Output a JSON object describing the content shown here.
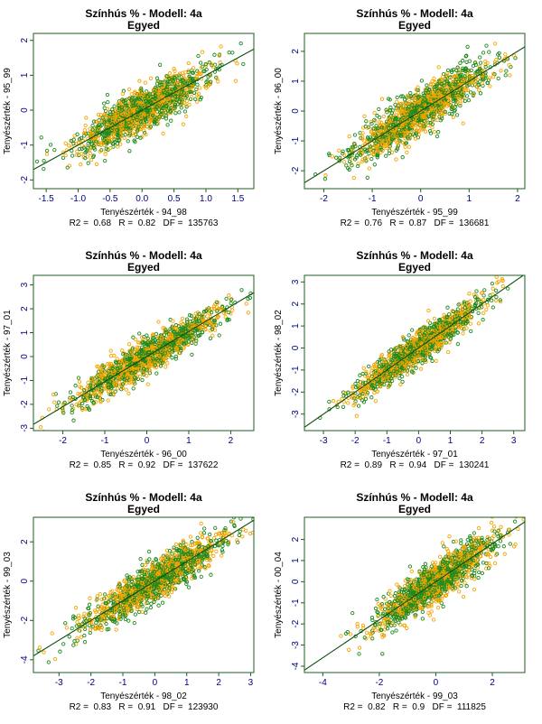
{
  "colors": {
    "primary_points": "#1f8a1f",
    "secondary_points": "#f5a500",
    "fit_line": "#0d4d0d",
    "frame": "#1f5e1f",
    "tick_labels": "#00007f"
  },
  "chart_data": [
    {
      "type": "scatter",
      "title": "Színhús % - Modell: 4a",
      "subtitle": "Egyed",
      "xlabel": "Tenyészérték - 94_98",
      "ylabel": "Tenyészérték - 95_99",
      "xlim": [
        -1.7,
        1.75
      ],
      "ylim": [
        -2.25,
        2.2
      ],
      "xticks": [
        -1.5,
        -1.0,
        -0.5,
        0.0,
        0.5,
        1.0,
        1.5
      ],
      "xtick_labels": [
        "-1.5",
        "-1.0",
        "-0.5",
        "0.0",
        "0.5",
        "1.0",
        "1.5"
      ],
      "yticks": [
        -2,
        -1,
        0,
        1,
        2
      ],
      "ytick_labels": [
        "-2",
        "-1",
        "0",
        "1",
        "2"
      ],
      "cloud": {
        "x_center": 0.0,
        "x_sd": 0.5,
        "r": 0.82
      },
      "fit_line": {
        "slope": 1.0,
        "intercept": 0.0
      },
      "stats": {
        "R2": "0.68",
        "R": "0.82",
        "DF": "135763"
      },
      "stats_text": "R2 =  0.68   R =  0.82   DF =  135763"
    },
    {
      "type": "scatter",
      "title": "Színhús % - Modell: 4a",
      "subtitle": "Egyed",
      "xlabel": "Tenyészérték - 95_99",
      "ylabel": "Tenyészérték - 96_00",
      "xlim": [
        -2.4,
        2.15
      ],
      "ylim": [
        -2.6,
        2.6
      ],
      "xticks": [
        -2,
        -1,
        0,
        1,
        2
      ],
      "xtick_labels": [
        "-2",
        "-1",
        "0",
        "1",
        "2"
      ],
      "yticks": [
        -2,
        -1,
        0,
        1,
        2
      ],
      "ytick_labels": [
        "-2",
        "-1",
        "0",
        "1",
        "2"
      ],
      "cloud": {
        "x_center": 0.0,
        "x_sd": 0.7,
        "r": 0.87
      },
      "fit_line": {
        "slope": 1.0,
        "intercept": 0.0
      },
      "stats": {
        "R2": "0.76",
        "R": "0.87",
        "DF": "136681"
      },
      "stats_text": "R2 =  0.76   R =  0.87   DF =  136681"
    },
    {
      "type": "scatter",
      "title": "Színhús % - Modell: 4a",
      "subtitle": "Egyed",
      "xlabel": "Tenyészérték - 96_00",
      "ylabel": "Tenyészérték - 97_01",
      "xlim": [
        -2.7,
        2.55
      ],
      "ylim": [
        -3.1,
        3.4
      ],
      "xticks": [
        -2,
        -1,
        0,
        1,
        2
      ],
      "xtick_labels": [
        "-2",
        "-1",
        "0",
        "1",
        "2"
      ],
      "yticks": [
        -3,
        -2,
        -1,
        0,
        1,
        2,
        3
      ],
      "ytick_labels": [
        "-3",
        "-2",
        "-1",
        "0",
        "1",
        "2",
        "3"
      ],
      "cloud": {
        "x_center": 0.0,
        "x_sd": 0.85,
        "r": 0.92
      },
      "fit_line": {
        "slope": 1.05,
        "intercept": 0.0
      },
      "stats": {
        "R2": "0.85",
        "R": "0.92",
        "DF": "137622"
      },
      "stats_text": "R2 =  0.85   R =  0.92   DF =  137622"
    },
    {
      "type": "scatter",
      "title": "Színhús % - Modell: 4a",
      "subtitle": "Egyed",
      "xlabel": "Tenyészérték - 97_01",
      "ylabel": "Tenyészérték - 98_02",
      "xlim": [
        -3.6,
        3.35
      ],
      "ylim": [
        -3.75,
        3.3
      ],
      "xticks": [
        -3,
        -2,
        -1,
        0,
        1,
        2,
        3
      ],
      "xtick_labels": [
        "-3",
        "-2",
        "-1",
        "0",
        "1",
        "2",
        "3"
      ],
      "yticks": [
        -3,
        -2,
        -1,
        0,
        1,
        2,
        3
      ],
      "ytick_labels": [
        "-3",
        "-2",
        "-1",
        "0",
        "1",
        "2",
        "3"
      ],
      "cloud": {
        "x_center": 0.0,
        "x_sd": 1.0,
        "r": 0.94
      },
      "fit_line": {
        "slope": 1.0,
        "intercept": 0.0
      },
      "stats": {
        "R2": "0.89",
        "R": "0.94",
        "DF": "130241"
      },
      "stats_text": "R2 =  0.89   R =  0.94   DF =  130241"
    },
    {
      "type": "scatter",
      "title": "Színhús % - Modell: 4a",
      "subtitle": "Egyed",
      "xlabel": "Tenyészérték - 98_02",
      "ylabel": "Tenyészérték - 99_03",
      "xlim": [
        -3.8,
        3.1
      ],
      "ylim": [
        -4.65,
        3.25
      ],
      "xticks": [
        -3,
        -2,
        -1,
        0,
        1,
        2,
        3
      ],
      "xtick_labels": [
        "-3",
        "-2",
        "-1",
        "0",
        "1",
        "2",
        "3"
      ],
      "yticks": [
        -4,
        -2,
        0,
        2
      ],
      "ytick_labels": [
        "-4",
        "-2",
        "0",
        "2"
      ],
      "cloud": {
        "x_center": 0.0,
        "x_sd": 1.1,
        "r": 0.91
      },
      "fit_line": {
        "slope": 1.0,
        "intercept": 0.0
      },
      "stats": {
        "R2": "0.83",
        "R": "0.91",
        "DF": "123930"
      },
      "stats_text": "R2 =  0.83   R =  0.91   DF =  123930"
    },
    {
      "type": "scatter",
      "title": "Színhús % - Modell: 4a",
      "subtitle": "Egyed",
      "xlabel": "Tenyészérték - 99_03",
      "ylabel": "Tenyészérték - 00_04",
      "xlim": [
        -4.65,
        3.15
      ],
      "ylim": [
        -4.3,
        3.05
      ],
      "xticks": [
        -4,
        -2,
        0,
        2
      ],
      "xtick_labels": [
        "-4",
        "-2",
        "0",
        "2"
      ],
      "yticks": [
        -4,
        -3,
        -2,
        -1,
        0,
        1,
        2
      ],
      "ytick_labels": [
        "-4",
        "-3",
        "-2",
        "-1",
        "0",
        "1",
        "2"
      ],
      "cloud": {
        "x_center": 0.0,
        "x_sd": 1.05,
        "r": 0.9
      },
      "fit_line": {
        "slope": 0.9,
        "intercept": 0.0
      },
      "stats": {
        "R2": "0.82",
        "R": "0.9",
        "DF": "111825"
      },
      "stats_text": "R2 =  0.82   R =  0.9   DF =  111825"
    }
  ]
}
